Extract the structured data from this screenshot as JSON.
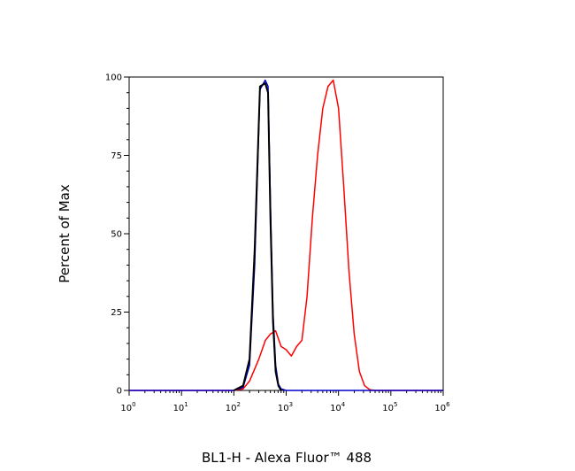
{
  "chart_data": {
    "type": "line",
    "title": "",
    "xlabel": "BL1-H - Alexa Fluor™ 488",
    "ylabel": "Percent of Max",
    "x_scale": "log",
    "xlim": [
      1,
      1000000
    ],
    "ylim": [
      0,
      100
    ],
    "y_ticks": [
      "0",
      "25",
      "50",
      "75",
      "100"
    ],
    "x_ticks": [
      {
        "base": "10",
        "exp": "0"
      },
      {
        "base": "10",
        "exp": "1"
      },
      {
        "base": "10",
        "exp": "2"
      },
      {
        "base": "10",
        "exp": "3"
      },
      {
        "base": "10",
        "exp": "4"
      },
      {
        "base": "10",
        "exp": "5"
      },
      {
        "base": "10",
        "exp": "6"
      }
    ],
    "grid": false,
    "legend": "none",
    "series": [
      {
        "color": "#ff0000",
        "x": [
          1,
          100,
          150,
          200,
          300,
          400,
          500,
          630,
          800,
          1000,
          1260,
          1580,
          2000,
          2510,
          3160,
          3980,
          5010,
          6310,
          7940,
          10000,
          12590,
          15850,
          19950,
          25120,
          31620,
          39810,
          50120,
          100000,
          1000000
        ],
        "y": [
          0,
          0,
          0.5,
          3,
          10,
          16,
          18,
          19,
          14,
          13,
          11,
          14,
          16,
          30,
          55,
          75,
          90,
          97,
          99,
          90,
          65,
          38,
          18,
          6,
          1.5,
          0.2,
          0,
          0,
          0
        ]
      },
      {
        "color": "#0000cc",
        "x": [
          1,
          100,
          150,
          200,
          250,
          316,
          398,
          450,
          500,
          560,
          630,
          710,
          800,
          1000,
          1000000
        ],
        "y": [
          0,
          0,
          1,
          8,
          40,
          96,
          99,
          97,
          60,
          25,
          8,
          2,
          0.5,
          0,
          0
        ]
      },
      {
        "color": "#000000",
        "x": [
          100,
          150,
          200,
          250,
          316,
          398,
          450,
          500,
          560,
          630,
          710,
          800
        ],
        "y": [
          0,
          1.5,
          10,
          45,
          97,
          98,
          95,
          55,
          22,
          6,
          1.5,
          0
        ]
      }
    ]
  }
}
